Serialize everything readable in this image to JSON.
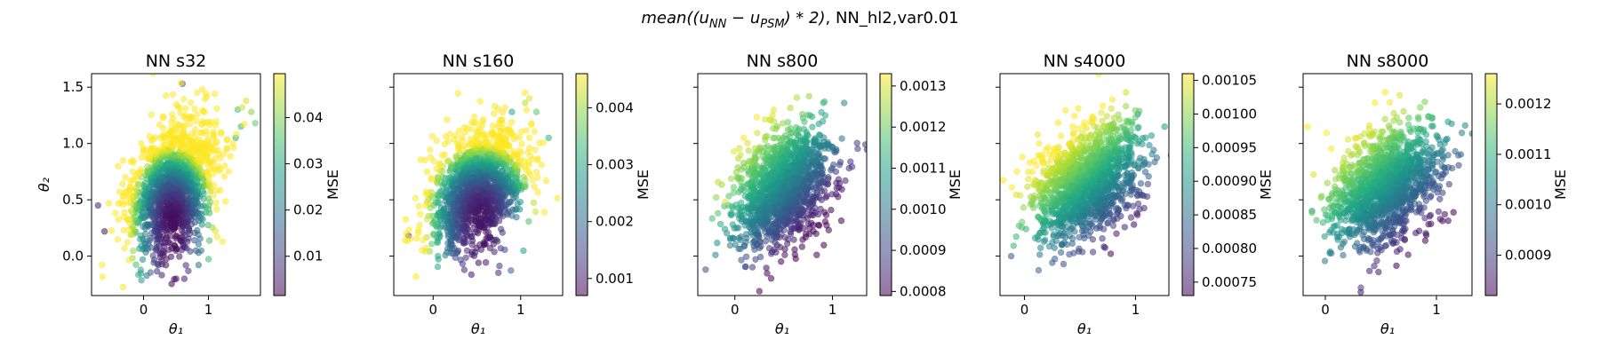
{
  "figure": {
    "suptitle_math": "mean((u",
    "suptitle_sub_nn": "NN",
    "suptitle_minus": " − u",
    "suptitle_sub_psm": "PSM",
    "suptitle_tail_math": ") * 2)",
    "suptitle_tail": ", NN_hl2,var0.01"
  },
  "chart_data": [
    {
      "type": "scatter",
      "title": "NN s32",
      "xlabel": "θ₁",
      "ylabel": "θ₂",
      "colorbar_label": "MSE",
      "colormap": "viridis",
      "alpha": 0.55,
      "xlim": [
        -0.8,
        1.8
      ],
      "ylim": [
        -0.35,
        1.62
      ],
      "xticks": [
        0,
        1
      ],
      "xticklabels": [
        "0",
        "1"
      ],
      "yticks": [
        0.0,
        0.5,
        1.0,
        1.5
      ],
      "yticklabels": [
        "0.0",
        "0.5",
        "1.0",
        "1.5"
      ],
      "show_ytick_labels": true,
      "clim": [
        0.0015,
        0.0495
      ],
      "cticks": [
        0.01,
        0.02,
        0.03,
        0.04
      ],
      "cticklabels": [
        "0.01",
        "0.02",
        "0.03",
        "0.04"
      ],
      "cloud": {
        "center": [
          0.45,
          0.62
        ],
        "sd": [
          0.33,
          0.3
        ],
        "rho": 0.35,
        "n": 1400,
        "seed": 11
      },
      "color_model": {
        "base": 0.0025,
        "cx": 0.45,
        "cy": 0.32,
        "ax": 0.026,
        "ay": 0.036,
        "max": 0.0495
      },
      "highlight_points": [
        {
          "x": 1.58,
          "y": 1.38,
          "c": 0.047
        },
        {
          "x": 1.52,
          "y": 1.32,
          "c": 0.046
        },
        {
          "x": 1.66,
          "y": 1.28,
          "c": 0.041
        },
        {
          "x": 1.72,
          "y": 1.18,
          "c": 0.038
        },
        {
          "x": 1.45,
          "y": 1.3,
          "c": 0.036
        },
        {
          "x": 1.5,
          "y": 1.15,
          "c": 0.034
        },
        {
          "x": 1.42,
          "y": 1.05,
          "c": 0.032
        },
        {
          "x": 0.6,
          "y": 1.53,
          "c": 0.012
        },
        {
          "x": -0.7,
          "y": 0.45,
          "c": 0.006
        },
        {
          "x": -0.6,
          "y": 0.22,
          "c": 0.005
        }
      ]
    },
    {
      "type": "scatter",
      "title": "NN s160",
      "xlabel": "θ₁",
      "ylabel": "",
      "colorbar_label": "MSE",
      "colormap": "viridis",
      "alpha": 0.55,
      "xlim": [
        -0.45,
        1.48
      ],
      "ylim": [
        -0.35,
        1.62
      ],
      "xticks": [
        0,
        1
      ],
      "xticklabels": [
        "0",
        "1"
      ],
      "yticks": [
        0.0,
        0.5,
        1.0,
        1.5
      ],
      "yticklabels": [
        "0.0",
        "0.5",
        "1.0",
        "1.5"
      ],
      "show_ytick_labels": false,
      "clim": [
        0.0007,
        0.0046
      ],
      "cticks": [
        0.001,
        0.002,
        0.003,
        0.004
      ],
      "cticklabels": [
        "0.001",
        "0.002",
        "0.003",
        "0.004"
      ],
      "cloud": {
        "center": [
          0.5,
          0.6
        ],
        "sd": [
          0.27,
          0.26
        ],
        "rho": 0.35,
        "n": 1400,
        "seed": 23
      },
      "color_model": {
        "base": 0.0009,
        "cx": 0.55,
        "cy": 0.38,
        "ax": 0.0022,
        "ay": 0.0032,
        "max": 0.0046
      },
      "highlight_points": [
        {
          "x": 1.1,
          "y": 1.4,
          "c": 0.0044
        },
        {
          "x": 1.05,
          "y": 1.36,
          "c": 0.0042
        },
        {
          "x": 1.18,
          "y": 1.28,
          "c": 0.0036
        },
        {
          "x": 1.32,
          "y": 1.05,
          "c": 0.0032
        },
        {
          "x": 0.9,
          "y": 1.28,
          "c": 0.003
        },
        {
          "x": -0.28,
          "y": 0.18,
          "c": 0.0014
        }
      ]
    },
    {
      "type": "scatter",
      "title": "NN s800",
      "xlabel": "θ₁",
      "ylabel": "",
      "colorbar_label": "MSE",
      "colormap": "viridis",
      "alpha": 0.55,
      "xlim": [
        -0.38,
        1.35
      ],
      "ylim": [
        -0.35,
        1.62
      ],
      "xticks": [
        0,
        1
      ],
      "xticklabels": [
        "0",
        "1"
      ],
      "yticks": [
        0.0,
        0.5,
        1.0,
        1.5
      ],
      "yticklabels": [
        "0.0",
        "0.5",
        "1.0",
        "1.5"
      ],
      "show_ytick_labels": false,
      "clim": [
        0.00079,
        0.00133
      ],
      "cticks": [
        0.0008,
        0.0009,
        0.001,
        0.0011,
        0.0012,
        0.0013
      ],
      "cticklabels": [
        "0.0008",
        "0.0009",
        "0.0010",
        "0.0011",
        "0.0012",
        "0.0013"
      ],
      "cloud": {
        "center": [
          0.5,
          0.62
        ],
        "sd": [
          0.25,
          0.27
        ],
        "rho": 0.35,
        "n": 1400,
        "seed": 37
      },
      "color_model": {
        "base": 0.00102,
        "gx": -0.00034,
        "gy": 0.00036,
        "mx": 0.5,
        "my": 0.6,
        "min": 0.00079,
        "max": 0.00133
      },
      "highlight_points": [
        {
          "x": -0.3,
          "y": -0.12,
          "c": 0.00092
        },
        {
          "x": 1.12,
          "y": 1.36,
          "c": 0.00104
        },
        {
          "x": -0.1,
          "y": 0.48,
          "c": 0.0013
        }
      ]
    },
    {
      "type": "scatter",
      "title": "NN s4000",
      "xlabel": "θ₁",
      "ylabel": "",
      "colorbar_label": "MSE",
      "colormap": "viridis",
      "alpha": 0.55,
      "xlim": [
        -0.22,
        1.3
      ],
      "ylim": [
        -0.35,
        1.62
      ],
      "xticks": [
        0,
        1
      ],
      "xticklabels": [
        "0",
        "1"
      ],
      "yticks": [
        0.0,
        0.5,
        1.0,
        1.5
      ],
      "yticklabels": [
        "0.0",
        "0.5",
        "1.0",
        "1.5"
      ],
      "show_ytick_labels": false,
      "clim": [
        0.00073,
        0.00106
      ],
      "cticks": [
        0.00075,
        0.0008,
        0.00085,
        0.0009,
        0.00095,
        0.001,
        0.00105
      ],
      "cticklabels": [
        "0.00075",
        "0.00080",
        "0.00085",
        "0.00090",
        "0.00095",
        "0.00100",
        "0.00105"
      ],
      "cloud": {
        "center": [
          0.55,
          0.65
        ],
        "sd": [
          0.24,
          0.25
        ],
        "rho": 0.35,
        "n": 1400,
        "seed": 51
      },
      "color_model": {
        "base": 0.00092,
        "gx": -0.00022,
        "gy": 0.00024,
        "mx": 0.55,
        "my": 0.6,
        "min": 0.00073,
        "max": 0.00106
      },
      "highlight_points": [
        {
          "x": -0.12,
          "y": 0.0,
          "c": 0.00082
        },
        {
          "x": 1.02,
          "y": 1.26,
          "c": 0.00088
        },
        {
          "x": 0.12,
          "y": 1.08,
          "c": 0.00105
        }
      ]
    },
    {
      "type": "scatter",
      "title": "NN s8000",
      "xlabel": "θ₁",
      "ylabel": "",
      "colorbar_label": "MSE",
      "colormap": "viridis",
      "alpha": 0.55,
      "xlim": [
        -0.2,
        1.32
      ],
      "ylim": [
        -0.35,
        1.62
      ],
      "xticks": [
        0,
        1
      ],
      "xticklabels": [
        "0",
        "1"
      ],
      "yticks": [
        0.0,
        0.5,
        1.0,
        1.5
      ],
      "yticklabels": [
        "0.0",
        "0.5",
        "1.0",
        "1.5"
      ],
      "show_ytick_labels": false,
      "clim": [
        0.00082,
        0.00126
      ],
      "cticks": [
        0.0009,
        0.001,
        0.0011,
        0.0012
      ],
      "cticklabels": [
        "0.0009",
        "0.0010",
        "0.0011",
        "0.0012"
      ],
      "cloud": {
        "center": [
          0.55,
          0.62
        ],
        "sd": [
          0.24,
          0.25
        ],
        "rho": 0.35,
        "n": 1400,
        "seed": 67
      },
      "color_model": {
        "base": 0.00104,
        "gx": -0.00026,
        "gy": 0.00028,
        "mx": 0.55,
        "my": 0.6,
        "min": 0.00082,
        "max": 0.00126
      },
      "highlight_points": [
        {
          "x": 0.32,
          "y": -0.28,
          "c": 0.0009
        },
        {
          "x": -0.12,
          "y": 0.4,
          "c": 0.00104
        }
      ]
    }
  ]
}
